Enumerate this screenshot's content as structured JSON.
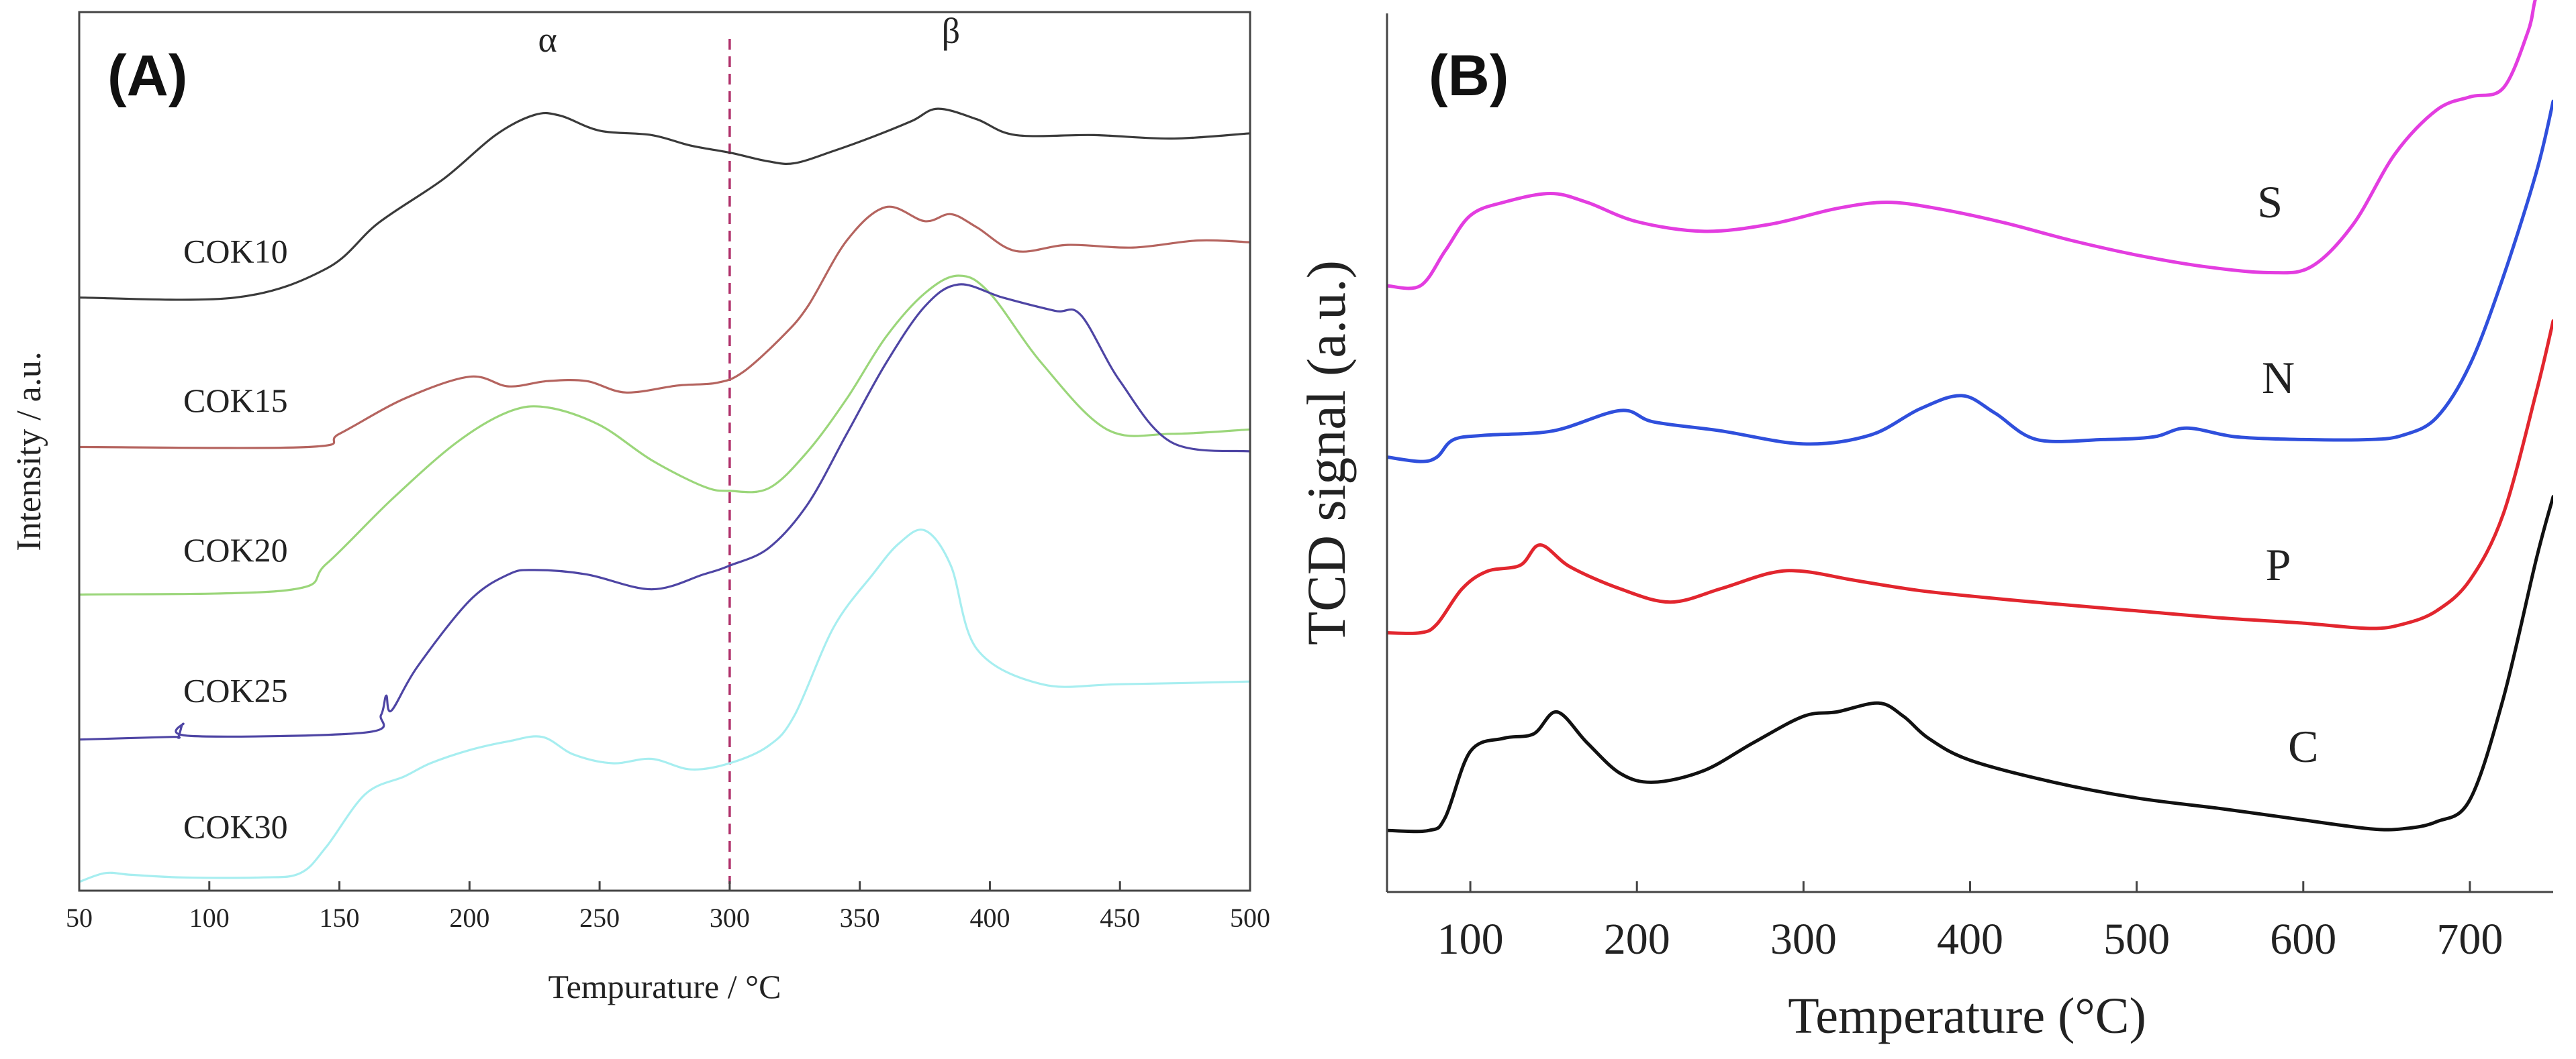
{
  "chart_data": [
    {
      "type": "line",
      "panel": "(A)",
      "xlabel": "Tempurature / °C",
      "ylabel": "Intensity / a.u.",
      "xlim": [
        50,
        500
      ],
      "ylim": [
        0,
        1
      ],
      "xticks": [
        50,
        100,
        150,
        200,
        250,
        300,
        350,
        400,
        450,
        500
      ],
      "vline": 300,
      "annotations": [
        {
          "text": "α",
          "x": 230,
          "y": 0.955
        },
        {
          "text": "β",
          "x": 385,
          "y": 0.965
        }
      ],
      "series": [
        {
          "name": "COK10",
          "color": "#3a3a3a",
          "label_x": 90,
          "label_y": 0.715,
          "x": [
            50,
            110,
            145,
            165,
            190,
            210,
            225,
            235,
            250,
            270,
            285,
            300,
            315,
            325,
            340,
            355,
            370,
            380,
            395,
            410,
            440,
            470,
            500
          ],
          "y": [
            0.675,
            0.675,
            0.708,
            0.76,
            0.81,
            0.86,
            0.883,
            0.882,
            0.865,
            0.86,
            0.848,
            0.84,
            0.83,
            0.828,
            0.842,
            0.858,
            0.876,
            0.89,
            0.878,
            0.86,
            0.86,
            0.856,
            0.862
          ]
        },
        {
          "name": "COK15",
          "color": "#b5645f",
          "label_x": 90,
          "label_y": 0.545,
          "x": [
            50,
            138,
            150,
            175,
            200,
            215,
            230,
            245,
            260,
            280,
            295,
            305,
            320,
            330,
            345,
            360,
            375,
            385,
            395,
            410,
            430,
            455,
            480,
            500
          ],
          "y": [
            0.505,
            0.505,
            0.52,
            0.56,
            0.585,
            0.574,
            0.58,
            0.58,
            0.567,
            0.575,
            0.578,
            0.59,
            0.63,
            0.665,
            0.74,
            0.778,
            0.762,
            0.77,
            0.755,
            0.728,
            0.735,
            0.732,
            0.74,
            0.738
          ]
        },
        {
          "name": "COK20",
          "color": "#9bd67a",
          "label_x": 90,
          "label_y": 0.375,
          "x": [
            50,
            130,
            145,
            170,
            195,
            215,
            230,
            250,
            270,
            290,
            300,
            315,
            330,
            345,
            360,
            375,
            388,
            400,
            420,
            445,
            470,
            500
          ],
          "y": [
            0.337,
            0.342,
            0.372,
            0.445,
            0.51,
            0.545,
            0.55,
            0.53,
            0.49,
            0.46,
            0.455,
            0.458,
            0.5,
            0.56,
            0.63,
            0.68,
            0.7,
            0.68,
            0.6,
            0.525,
            0.52,
            0.525
          ]
        },
        {
          "name": "COK25",
          "color": "#4e45a4",
          "label_x": 90,
          "label_y": 0.215,
          "x": [
            50,
            85,
            88,
            90,
            93,
            160,
            166,
            168,
            170,
            180,
            200,
            215,
            225,
            245,
            270,
            290,
            300,
            315,
            330,
            345,
            360,
            375,
            388,
            405,
            425,
            435,
            450,
            470,
            500
          ],
          "y": [
            0.172,
            0.175,
            0.175,
            0.19,
            0.176,
            0.18,
            0.2,
            0.222,
            0.205,
            0.255,
            0.33,
            0.36,
            0.365,
            0.36,
            0.343,
            0.36,
            0.37,
            0.39,
            0.44,
            0.52,
            0.6,
            0.665,
            0.69,
            0.675,
            0.66,
            0.655,
            0.58,
            0.51,
            0.5
          ]
        },
        {
          "name": "COK30",
          "color": "#a7eef0",
          "label_x": 90,
          "label_y": 0.06,
          "x": [
            50,
            60,
            70,
            90,
            120,
            135,
            145,
            160,
            175,
            185,
            200,
            215,
            228,
            240,
            255,
            270,
            285,
            300,
            315,
            325,
            340,
            355,
            365,
            375,
            385,
            395,
            420,
            450,
            500
          ],
          "y": [
            0.01,
            0.02,
            0.018,
            0.015,
            0.015,
            0.02,
            0.05,
            0.11,
            0.13,
            0.145,
            0.16,
            0.17,
            0.175,
            0.155,
            0.145,
            0.15,
            0.138,
            0.145,
            0.165,
            0.2,
            0.3,
            0.36,
            0.395,
            0.41,
            0.37,
            0.275,
            0.235,
            0.235,
            0.238
          ]
        }
      ]
    },
    {
      "type": "line",
      "panel": "(B)",
      "xlabel": "Temperature (°C)",
      "ylabel": "TCD signal (a.u.)",
      "xlim": [
        50,
        750
      ],
      "ylim": [
        0,
        1
      ],
      "xticks": [
        100,
        200,
        300,
        400,
        500,
        600,
        700
      ],
      "series": [
        {
          "name": "S",
          "color": "#e33de0",
          "label_x": 580,
          "label_y": 0.768,
          "x": [
            50,
            70,
            85,
            100,
            120,
            148,
            170,
            200,
            240,
            280,
            320,
            350,
            380,
            420,
            460,
            500,
            540,
            580,
            605,
            630,
            655,
            680,
            700,
            720,
            735,
            740,
            750
          ],
          "y": [
            0.69,
            0.69,
            0.73,
            0.77,
            0.785,
            0.795,
            0.785,
            0.763,
            0.752,
            0.76,
            0.778,
            0.785,
            0.778,
            0.762,
            0.742,
            0.725,
            0.712,
            0.705,
            0.712,
            0.76,
            0.84,
            0.89,
            0.905,
            0.915,
            0.98,
            1.02,
            1.05
          ]
        },
        {
          "name": "N",
          "color": "#2f4fdc",
          "label_x": 585,
          "label_y": 0.568,
          "x": [
            50,
            70,
            80,
            90,
            110,
            150,
            190,
            210,
            250,
            300,
            340,
            370,
            395,
            415,
            440,
            480,
            510,
            530,
            560,
            600,
            640,
            660,
            680,
            700,
            720,
            740,
            750
          ],
          "y": [
            0.495,
            0.49,
            0.495,
            0.515,
            0.52,
            0.525,
            0.548,
            0.535,
            0.525,
            0.51,
            0.52,
            0.55,
            0.565,
            0.545,
            0.515,
            0.515,
            0.518,
            0.528,
            0.518,
            0.515,
            0.515,
            0.52,
            0.54,
            0.6,
            0.7,
            0.82,
            0.9
          ]
        },
        {
          "name": "P",
          "color": "#e2262e",
          "label_x": 585,
          "label_y": 0.355,
          "x": [
            50,
            70,
            80,
            95,
            110,
            130,
            142,
            160,
            190,
            220,
            250,
            280,
            300,
            330,
            370,
            410,
            450,
            500,
            550,
            600,
            640,
            660,
            680,
            700,
            720,
            740,
            750
          ],
          "y": [
            0.295,
            0.295,
            0.305,
            0.345,
            0.365,
            0.372,
            0.395,
            0.37,
            0.345,
            0.33,
            0.345,
            0.363,
            0.365,
            0.355,
            0.343,
            0.335,
            0.328,
            0.32,
            0.312,
            0.306,
            0.3,
            0.305,
            0.32,
            0.355,
            0.43,
            0.57,
            0.65
          ]
        },
        {
          "name": "C",
          "color": "#111111",
          "label_x": 600,
          "label_y": 0.148,
          "x": [
            50,
            75,
            85,
            100,
            120,
            138,
            152,
            170,
            190,
            210,
            240,
            270,
            300,
            320,
            345,
            360,
            375,
            400,
            450,
            500,
            550,
            600,
            640,
            660,
            680,
            700,
            720,
            740,
            750
          ],
          "y": [
            0.07,
            0.07,
            0.085,
            0.16,
            0.175,
            0.18,
            0.205,
            0.17,
            0.135,
            0.125,
            0.138,
            0.17,
            0.2,
            0.205,
            0.215,
            0.2,
            0.175,
            0.15,
            0.125,
            0.107,
            0.095,
            0.082,
            0.072,
            0.072,
            0.08,
            0.105,
            0.22,
            0.38,
            0.45
          ]
        }
      ]
    }
  ]
}
